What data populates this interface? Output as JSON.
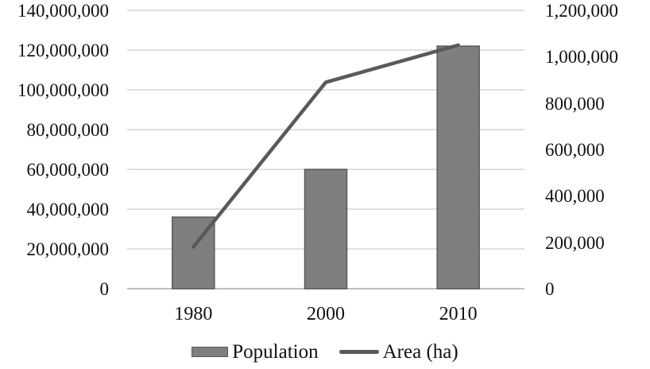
{
  "chart_data": {
    "type": "bar",
    "subtype": "combo-bar-line-dual-axis",
    "categories": [
      "1980",
      "2000",
      "2010"
    ],
    "series": [
      {
        "name": "Population",
        "type": "bar",
        "axis": "left",
        "values": [
          36000000,
          60000000,
          122000000
        ],
        "color": "#7f7f7f",
        "border_color": "#595959"
      },
      {
        "name": "Area (ha)",
        "type": "line",
        "axis": "right",
        "values": [
          180000,
          890000,
          1050000
        ],
        "color": "#595959"
      }
    ],
    "title": "",
    "xlabel": "",
    "ylabel_left": "",
    "ylabel_right": "",
    "left_axis": {
      "min": 0,
      "max": 140000000,
      "tick_labels": [
        "140,000,000",
        "120,000,000",
        "100,000,000",
        "80,000,000",
        "60,000,000",
        "40,000,000",
        "20,000,000",
        "0"
      ]
    },
    "right_axis": {
      "min": 0,
      "max": 1200000,
      "tick_labels": [
        "1,200,000",
        "1,000,000",
        "800,000",
        "600,000",
        "400,000",
        "200,000",
        "0"
      ]
    },
    "grid": true,
    "legend_position": "bottom",
    "colors": {
      "gridline": "#d6d6d6",
      "baseline": "#c0c0c0",
      "text": "#111111",
      "background": "#ffffff"
    }
  }
}
